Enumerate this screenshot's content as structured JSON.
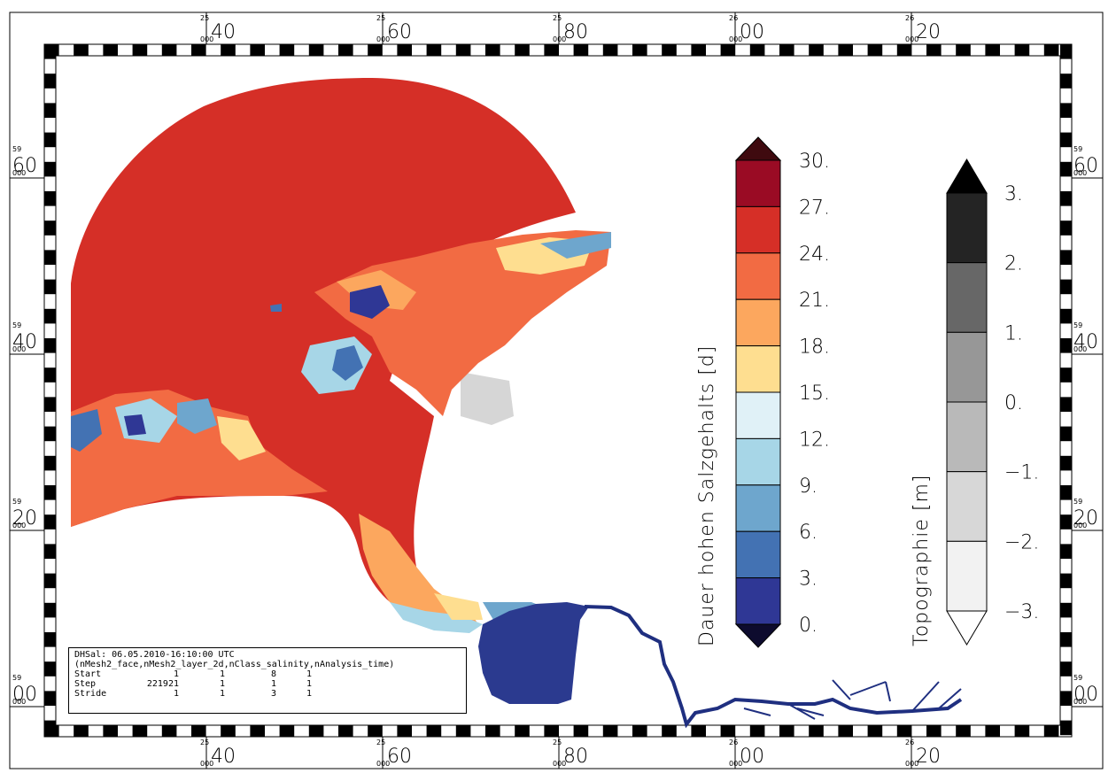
{
  "map": {
    "top_axis": [
      {
        "major": "40",
        "minor": "25",
        "sub": "000"
      },
      {
        "major": "60",
        "minor": "25",
        "sub": "000"
      },
      {
        "major": "80",
        "minor": "25",
        "sub": "000"
      },
      {
        "major": "00",
        "minor": "26",
        "sub": "000"
      },
      {
        "major": "20",
        "minor": "26",
        "sub": "000"
      }
    ],
    "bottom_axis": [
      {
        "major": "40",
        "minor": "25",
        "sub": "000"
      },
      {
        "major": "60",
        "minor": "25",
        "sub": "000"
      },
      {
        "major": "80",
        "minor": "25",
        "sub": "000"
      },
      {
        "major": "00",
        "minor": "26",
        "sub": "000"
      },
      {
        "major": "20",
        "minor": "26",
        "sub": "000"
      }
    ],
    "left_axis": [
      {
        "major": "60",
        "minor": "59",
        "sub": "000"
      },
      {
        "major": "40",
        "minor": "59",
        "sub": "000"
      },
      {
        "major": "20",
        "minor": "59",
        "sub": "000"
      },
      {
        "major": "00",
        "minor": "59",
        "sub": "000"
      }
    ],
    "right_axis": [
      {
        "major": "60",
        "minor": "59",
        "sub": "000"
      },
      {
        "major": "40",
        "minor": "59",
        "sub": "000"
      },
      {
        "major": "20",
        "minor": "59",
        "sub": "000"
      },
      {
        "major": "00",
        "minor": "59",
        "sub": "000"
      }
    ],
    "colors": {
      "open_sea": "#d52f27",
      "low_duration": "#2b3a8f",
      "river_line": "#1f2f80",
      "dry_land": "#d6d6d6"
    }
  },
  "salinity_colorbar": {
    "title": "Dauer hohen Salzgehalts [d]",
    "labels": [
      "30.",
      "27.",
      "24.",
      "21.",
      "18.",
      "15.",
      "12.",
      "9.",
      "6.",
      "3.",
      "0."
    ],
    "colors": [
      "#9a0b24",
      "#d62f27",
      "#f26b43",
      "#fca75e",
      "#fede90",
      "#e0f1f7",
      "#a7d6e7",
      "#6ea6cd",
      "#4372b3",
      "#2f3795"
    ],
    "over_color": "#3f0a0f",
    "under_color": "#0d0b2e"
  },
  "topo_colorbar": {
    "title": "Topographie [m]",
    "labels": [
      "3.",
      "2.",
      "1.",
      "0.",
      "−1.",
      "−2.",
      "−3."
    ],
    "colors": [
      "#242424",
      "#676767",
      "#979797",
      "#b9b9b9",
      "#d7d7d7",
      "#f2f2f2"
    ],
    "over_color": "#000000",
    "under_color": "#ffffff"
  },
  "info": {
    "line1": "DHSal: 06.05.2010-16:10:00 UTC",
    "line2": "(nMesh2_face,nMesh2_layer_2d,nClass_salinity,nAnalysis_time)",
    "rows": [
      [
        "Start",
        "1",
        "1",
        "8",
        "1"
      ],
      [
        "Step",
        "221921",
        "1",
        "1",
        "1"
      ],
      [
        "Stride",
        "1",
        "1",
        "3",
        "1"
      ]
    ]
  }
}
